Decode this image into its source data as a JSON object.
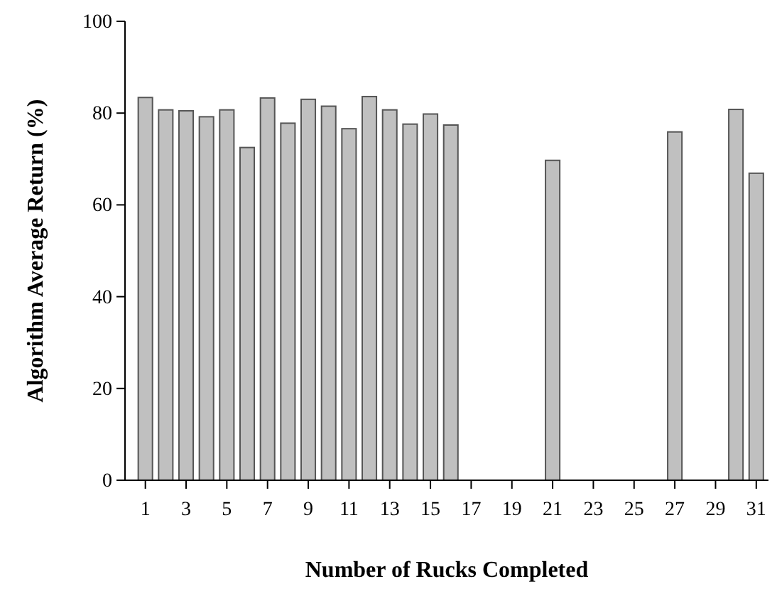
{
  "chart_data": {
    "type": "bar",
    "xlabel": "Number of Rucks Completed",
    "ylabel": "Algorithm Average Return (%)",
    "x": [
      1,
      2,
      3,
      4,
      5,
      6,
      7,
      8,
      9,
      10,
      11,
      12,
      13,
      14,
      15,
      16,
      21,
      27,
      30,
      31
    ],
    "values": [
      83.4,
      80.7,
      80.5,
      79.2,
      80.7,
      72.5,
      83.3,
      77.8,
      83.0,
      81.5,
      76.6,
      83.6,
      80.7,
      77.6,
      79.8,
      77.4,
      69.7,
      75.9,
      80.8,
      66.9
    ],
    "color": "#c0c0c0",
    "xlim": [
      0,
      31.6
    ],
    "xticks": [
      1,
      3,
      5,
      7,
      9,
      11,
      13,
      15,
      17,
      19,
      21,
      23,
      25,
      27,
      29,
      31
    ],
    "ylim": [
      0,
      100
    ],
    "yticks": [
      0,
      20,
      40,
      60,
      80,
      100
    ],
    "grid": false
  }
}
